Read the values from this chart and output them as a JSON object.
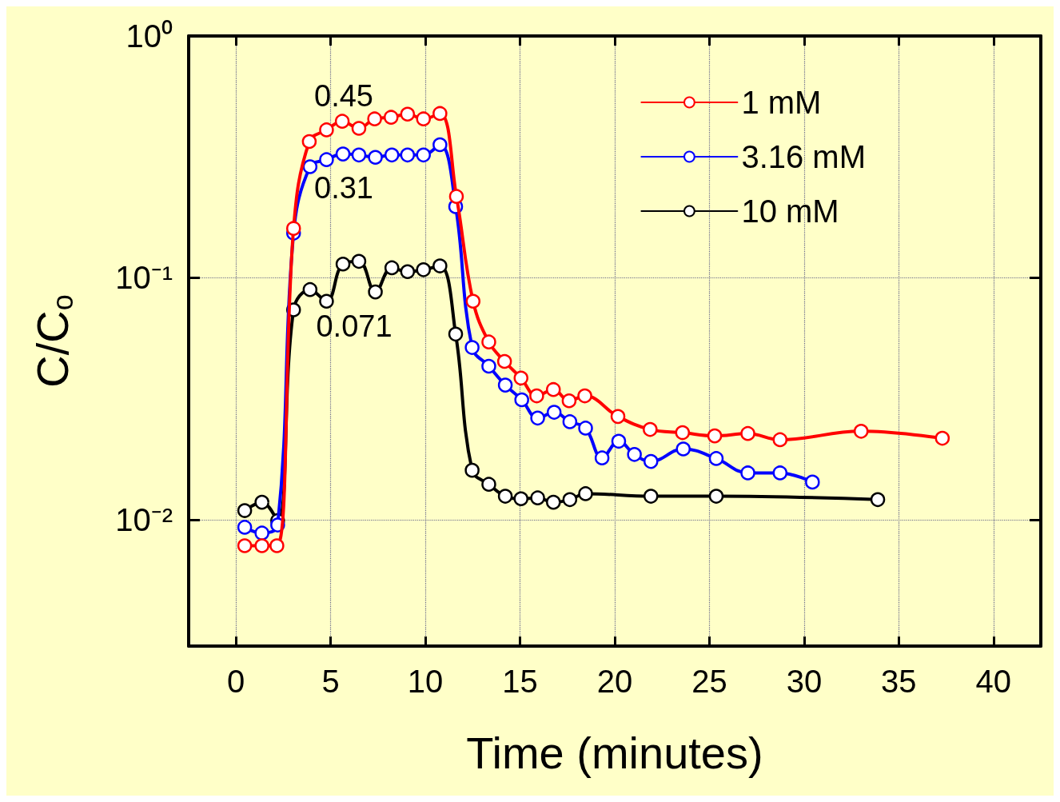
{
  "chart_data": {
    "type": "line",
    "xlabel": "Time (minutes)",
    "ylabel": "C/C$_{o}$",
    "log": "y",
    "xlim": [
      -2.5,
      42.5
    ],
    "ylim": [
      0.003,
      1
    ],
    "xticks": [
      0,
      5,
      10,
      15,
      20,
      25,
      30,
      35,
      40
    ],
    "yticks": [
      {
        "value": 0.01,
        "label": "10⁻²"
      },
      {
        "value": 0.1,
        "label": "10⁻¹"
      },
      {
        "value": 1,
        "label": "10⁰"
      }
    ],
    "grid": true,
    "legend": "top right",
    "marker": "circle",
    "line_style": "solid",
    "annotations": [
      "0.45",
      "0.31",
      "0.071"
    ],
    "series": [
      {
        "name": "1 mM",
        "color": "#ff0000",
        "x": [
          0.46,
          1.37,
          2.16,
          3.04,
          3.87,
          4.78,
          5.61,
          6.49,
          7.32,
          8.19,
          9.06,
          9.9,
          10.77,
          11.64,
          12.52,
          13.35,
          14.18,
          15.05,
          15.88,
          16.76,
          17.59,
          18.42,
          20.17,
          21.87,
          23.58,
          25.28,
          27.03,
          28.73,
          33.01,
          37.3
        ],
        "values": [
          0.0078,
          0.0078,
          0.0078,
          0.16,
          0.366,
          0.409,
          0.444,
          0.415,
          0.454,
          0.461,
          0.475,
          0.454,
          0.478,
          0.217,
          0.08,
          0.0543,
          0.0451,
          0.0385,
          0.0325,
          0.0345,
          0.031,
          0.0325,
          0.0267,
          0.0236,
          0.0229,
          0.0222,
          0.0227,
          0.0214,
          0.0232,
          0.0217
        ]
      },
      {
        "name": "3.16 mM",
        "color": "#0000ff",
        "x": [
          0.46,
          1.37,
          2.2,
          3.04,
          3.91,
          4.78,
          5.65,
          6.49,
          7.36,
          8.23,
          9.06,
          9.9,
          10.77,
          11.6,
          12.47,
          13.35,
          14.22,
          15.09,
          15.93,
          16.8,
          17.63,
          18.46,
          19.33,
          20.21,
          21.04,
          21.91,
          23.62,
          25.36,
          27.03,
          28.73,
          30.44
        ],
        "values": [
          0.0093,
          0.0088,
          0.0095,
          0.153,
          0.288,
          0.308,
          0.325,
          0.322,
          0.315,
          0.322,
          0.322,
          0.322,
          0.355,
          0.197,
          0.0515,
          0.0431,
          0.036,
          0.0313,
          0.0263,
          0.0278,
          0.0254,
          0.0239,
          0.018,
          0.0211,
          0.0186,
          0.0174,
          0.0196,
          0.0179,
          0.0156,
          0.0156,
          0.0143
        ]
      },
      {
        "name": "10 mM",
        "color": "#000000",
        "x": [
          0.46,
          1.37,
          2.2,
          3.04,
          3.91,
          4.78,
          5.65,
          6.49,
          7.36,
          8.23,
          9.06,
          9.9,
          10.77,
          11.6,
          12.47,
          13.35,
          14.22,
          15.05,
          15.93,
          16.76,
          17.63,
          18.46,
          21.91,
          25.36,
          33.89
        ],
        "values": [
          0.0109,
          0.0118,
          0.0099,
          0.0737,
          0.0894,
          0.08,
          0.114,
          0.117,
          0.0874,
          0.11,
          0.106,
          0.108,
          0.112,
          0.0585,
          0.016,
          0.014,
          0.0125,
          0.0122,
          0.0123,
          0.0118,
          0.0121,
          0.0128,
          0.0125,
          0.0125,
          0.0121
        ]
      }
    ]
  }
}
